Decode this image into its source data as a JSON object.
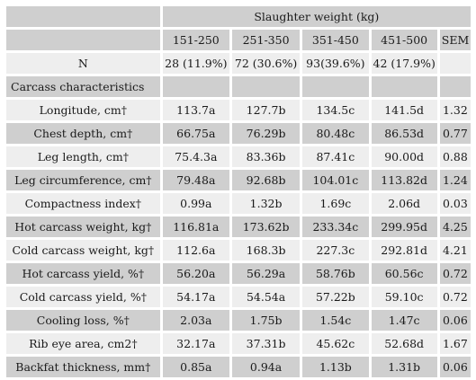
{
  "header": {
    "group_label": "Slaughter weight (kg)",
    "columns": [
      "151-250",
      "251-350",
      "351-450",
      "451-500",
      "SEM"
    ]
  },
  "n_row": {
    "label": "N",
    "values": [
      "28 (11.9%)",
      "72 (30.6%)",
      "93(39.6%)",
      "42 (17.9%)",
      ""
    ]
  },
  "section_label": "Carcass characteristics",
  "rows": [
    {
      "label": "Longitude, cm†",
      "values": [
        "113.7a",
        "127.7b",
        "134.5c",
        "141.5d",
        "1.32"
      ]
    },
    {
      "label": "Chest depth, cm†",
      "values": [
        "66.75a",
        "76.29b",
        "80.48c",
        "86.53d",
        "0.77"
      ]
    },
    {
      "label": "Leg length, cm†",
      "values": [
        "75.4.3a",
        "83.36b",
        "87.41c",
        "90.00d",
        "0.88"
      ]
    },
    {
      "label": "Leg circumference, cm†",
      "values": [
        "79.48a",
        "92.68b",
        "104.01c",
        "113.82d",
        "1.24"
      ]
    },
    {
      "label": "Compactness index†",
      "values": [
        "0.99a",
        "1.32b",
        "1.69c",
        "2.06d",
        "0.03"
      ]
    },
    {
      "label": "Hot carcass weight, kg†",
      "values": [
        "116.81a",
        "173.62b",
        "233.34c",
        "299.95d",
        "4.25"
      ]
    },
    {
      "label": "Cold carcass weight, kg†",
      "values": [
        "112.6a",
        "168.3b",
        "227.3c",
        "292.81d",
        "4.21"
      ]
    },
    {
      "label": "Hot carcass yield, %†",
      "values": [
        "56.20a",
        "56.29a",
        "58.76b",
        "60.56c",
        "0.72"
      ]
    },
    {
      "label": "Cold carcass yield, %†",
      "values": [
        "54.17a",
        "54.54a",
        "57.22b",
        "59.10c",
        "0.72"
      ]
    },
    {
      "label": "Cooling loss, %†",
      "values": [
        "2.03a",
        "1.75b",
        "1.54c",
        "1.47c",
        "0.06"
      ]
    },
    {
      "label": "Rib eye area, cm2†",
      "values": [
        "32.17a",
        "37.31b",
        "45.62c",
        "52.68d",
        "1.67"
      ]
    },
    {
      "label": "Backfat thickness, mm†",
      "values": [
        "0.85a",
        "0.94a",
        "1.13b",
        "1.31b",
        "0.06"
      ]
    }
  ]
}
